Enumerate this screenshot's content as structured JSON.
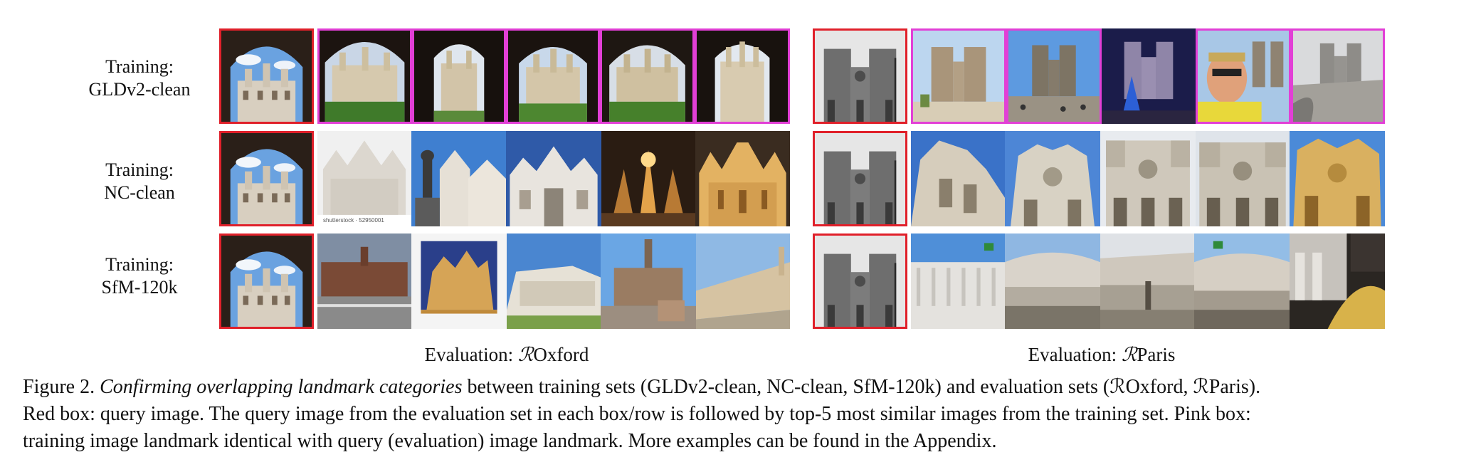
{
  "rows": [
    {
      "label_line1": "Training:",
      "label_line2": "GLDv2-clean"
    },
    {
      "label_line1": "Training:",
      "label_line2": "NC-clean"
    },
    {
      "label_line1": "Training:",
      "label_line2": "SfM-120k"
    }
  ],
  "eval": {
    "oxford_prefix": "Evaluation: ",
    "oxford_letter": "ℛ",
    "oxford_name": "Oxford",
    "paris_prefix": "Evaluation: ",
    "paris_letter": "ℛ",
    "paris_name": "Paris"
  },
  "legend": {
    "query_box_color": "#e0202a",
    "match_box_color": "#e23fd6"
  },
  "thumb_text": {
    "watermark": "shutterstock · 52950001"
  },
  "caption": {
    "fig_label": "Figure 2.",
    "emph": "Confirming overlapping landmark categories",
    "line1_rest": " between training sets (GLDv2-clean, NC-clean, SfM-120k) and evaluation sets (ℛOxford, ℛParis).",
    "line2": "Red box: query image. The query image from the evaluation set in each box/row is followed by top-5 most similar images from the training set. Pink box:",
    "line3": "training image landmark identical with query (evaluation) image landmark. More examples can be found in the Appendix."
  }
}
